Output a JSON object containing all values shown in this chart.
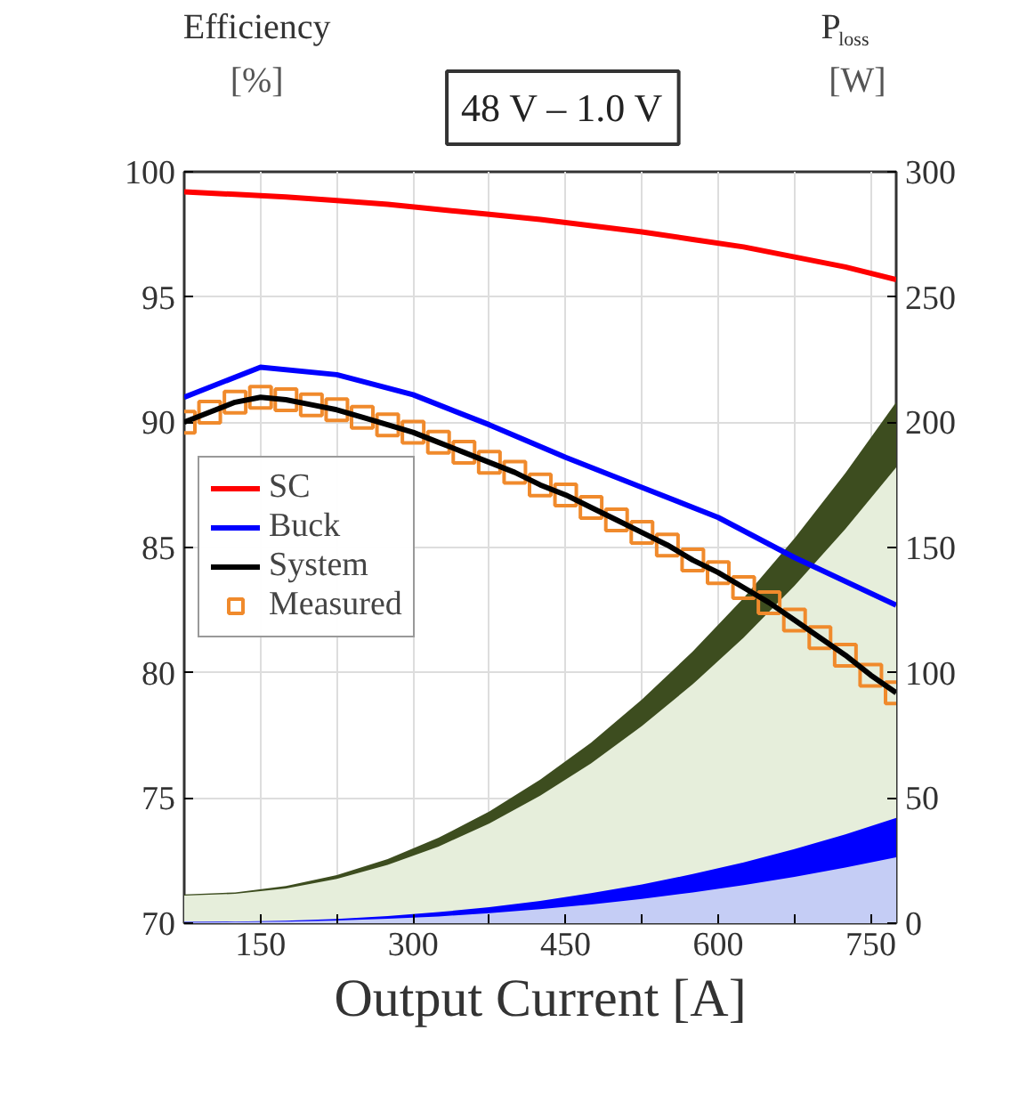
{
  "chart_data": {
    "type": "line",
    "title": "48 V – 1.0 V",
    "xlabel": "Output Current [A]",
    "ylabel": "Efficiency [%]",
    "y2label": "P$_{loss}$ [W]",
    "xlim": [
      75,
      775
    ],
    "xticks": [
      {
        "value": 150,
        "label": "150"
      },
      {
        "value": 225,
        "label": null
      },
      {
        "value": 300,
        "label": "300"
      },
      {
        "value": 375,
        "label": null
      },
      {
        "value": 450,
        "label": "450"
      },
      {
        "value": 525,
        "label": null
      },
      {
        "value": 600,
        "label": "600"
      },
      {
        "value": 675,
        "label": null
      },
      {
        "value": 750,
        "label": "750"
      }
    ],
    "ylim": [
      70,
      100
    ],
    "yticks": [
      70,
      75,
      80,
      85,
      90,
      95,
      100
    ],
    "y2lim": [
      0,
      300
    ],
    "y2ticks": [
      0,
      50,
      100,
      150,
      200,
      250,
      300
    ],
    "grid": true,
    "legend": "left",
    "series": [
      {
        "type": "area",
        "axis": "y2",
        "color": "#3d4d1f",
        "x": [
          75,
          125,
          175,
          225,
          275,
          325,
          375,
          425,
          475,
          525,
          575,
          625,
          675,
          725,
          775
        ],
        "values": [
          11.5,
          12.3,
          14.8,
          19.2,
          25.6,
          34.1,
          44.6,
          57.3,
          72.1,
          89.3,
          108.5,
          129.8,
          153.6,
          179.7,
          208.0
        ]
      },
      {
        "type": "area",
        "axis": "y2",
        "color": "#e6eedb",
        "x": [
          75,
          125,
          175,
          225,
          275,
          325,
          375,
          425,
          475,
          525,
          575,
          625,
          675,
          725,
          775
        ],
        "values": [
          11,
          11.7,
          13.9,
          17.7,
          23.3,
          30.6,
          39.8,
          50.9,
          63.8,
          78.7,
          95.4,
          114.0,
          134.7,
          157.4,
          182.0
        ]
      },
      {
        "type": "area",
        "axis": "y2",
        "color": "#0000ff",
        "x": [
          75,
          125,
          175,
          225,
          275,
          325,
          375,
          425,
          475,
          525,
          575,
          625,
          675,
          725,
          775
        ],
        "values": [
          0.5,
          0.6,
          1.0,
          1.7,
          2.8,
          4.4,
          6.4,
          8.9,
          12.0,
          15.5,
          19.6,
          24.3,
          29.6,
          35.5,
          42.0
        ]
      },
      {
        "type": "area",
        "axis": "y2",
        "color": "#c5cdf5",
        "x": [
          75,
          125,
          175,
          225,
          275,
          325,
          375,
          425,
          475,
          525,
          575,
          625,
          675,
          725,
          775
        ],
        "values": [
          0.3,
          0.4,
          0.6,
          1.1,
          1.8,
          2.7,
          4.0,
          5.6,
          7.5,
          9.7,
          12.3,
          15.2,
          18.5,
          22.2,
          26.3
        ]
      },
      {
        "name": "SC",
        "color": "#ff0000",
        "x": [
          75,
          125,
          175,
          225,
          275,
          325,
          375,
          425,
          475,
          525,
          575,
          625,
          675,
          725,
          775
        ],
        "values": [
          99.2,
          99.1,
          99.0,
          98.85,
          98.7,
          98.5,
          98.3,
          98.1,
          97.85,
          97.6,
          97.3,
          97.0,
          96.6,
          96.2,
          95.7
        ]
      },
      {
        "name": "Buck",
        "color": "#0000ff",
        "x": [
          75,
          150,
          225,
          300,
          375,
          450,
          525,
          600,
          675,
          775
        ],
        "values": [
          91.0,
          92.2,
          91.9,
          91.1,
          89.9,
          88.6,
          87.4,
          86.2,
          84.6,
          82.7
        ]
      },
      {
        "name": "Measured",
        "type": "scatter",
        "marker": "square",
        "color": "#f08a2c",
        "x": [
          75,
          100,
          125,
          150,
          175,
          200,
          225,
          250,
          275,
          300,
          325,
          350,
          375,
          400,
          425,
          450,
          475,
          500,
          525,
          550,
          575,
          600,
          625,
          650,
          675,
          700,
          725,
          750,
          775
        ],
        "values": [
          90.0,
          90.4,
          90.8,
          91.0,
          90.9,
          90.7,
          90.5,
          90.2,
          89.9,
          89.6,
          89.2,
          88.8,
          88.4,
          88.0,
          87.5,
          87.1,
          86.6,
          86.1,
          85.6,
          85.1,
          84.5,
          84.0,
          83.4,
          82.8,
          82.1,
          81.4,
          80.7,
          79.9,
          79.2
        ]
      },
      {
        "name": "System",
        "color": "#000000",
        "x": [
          75,
          100,
          125,
          150,
          175,
          200,
          225,
          250,
          275,
          300,
          325,
          350,
          375,
          400,
          425,
          450,
          475,
          500,
          525,
          550,
          575,
          600,
          625,
          650,
          675,
          700,
          725,
          750,
          775
        ],
        "values": [
          90.0,
          90.4,
          90.8,
          91.0,
          90.9,
          90.7,
          90.5,
          90.2,
          89.9,
          89.6,
          89.2,
          88.8,
          88.4,
          88.0,
          87.5,
          87.1,
          86.6,
          86.1,
          85.6,
          85.1,
          84.5,
          84.0,
          83.4,
          82.8,
          82.1,
          81.4,
          80.7,
          79.9,
          79.2
        ]
      }
    ]
  }
}
